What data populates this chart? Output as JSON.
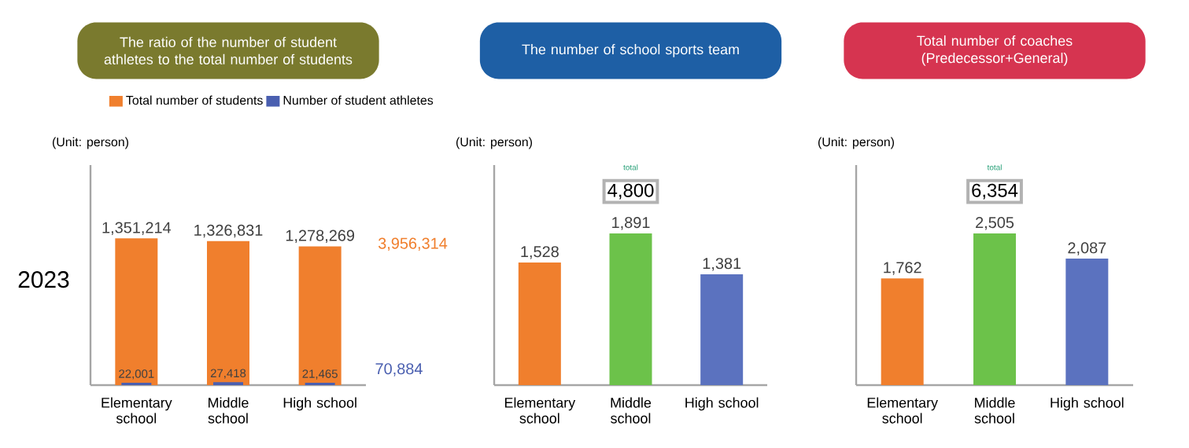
{
  "chart_data": [
    {
      "type": "bar",
      "title": "The ratio of the number of student athletes to the total number of students",
      "categories": [
        "Elementary school",
        "Middle school",
        "High school"
      ],
      "series": [
        {
          "name": "Total number of students",
          "color": "#f07f2d",
          "values": [
            1351214,
            1326831,
            1278269
          ],
          "value_labels": [
            "1,351,214",
            "1,326,831",
            "1,278,269"
          ]
        },
        {
          "name": "Number of student athletes",
          "color": "#4a5fb0",
          "values": [
            22001,
            27418,
            21465
          ],
          "value_labels": [
            "22,001",
            "27,418",
            "21,465"
          ]
        }
      ],
      "legend": "top",
      "annotations": [
        "(Unit: person)",
        "2023",
        "3,956,314",
        "70,884"
      ]
    },
    {
      "type": "bar",
      "title": "The number of school sports team",
      "categories": [
        "Elementary school",
        "Middle school",
        "High school"
      ],
      "values": [
        1528,
        1891,
        1381
      ],
      "value_labels": [
        "1,528",
        "1,891",
        "1,381"
      ],
      "colors": [
        "#f07f2d",
        "#6cc24a",
        "#5b72bf"
      ],
      "annotations": [
        "(Unit: person)",
        "total",
        "4,800"
      ]
    },
    {
      "type": "bar",
      "title": "Total number of coaches (Predecessor+General)",
      "categories": [
        "Elementary school",
        "Middle school",
        "High school"
      ],
      "values": [
        1762,
        2505,
        2087
      ],
      "value_labels": [
        "1,762",
        "2,505",
        "2,087"
      ],
      "colors": [
        "#f07f2d",
        "#6cc24a",
        "#5b72bf"
      ],
      "annotations": [
        "(Unit: person)",
        "total",
        "6,354"
      ]
    }
  ]
}
